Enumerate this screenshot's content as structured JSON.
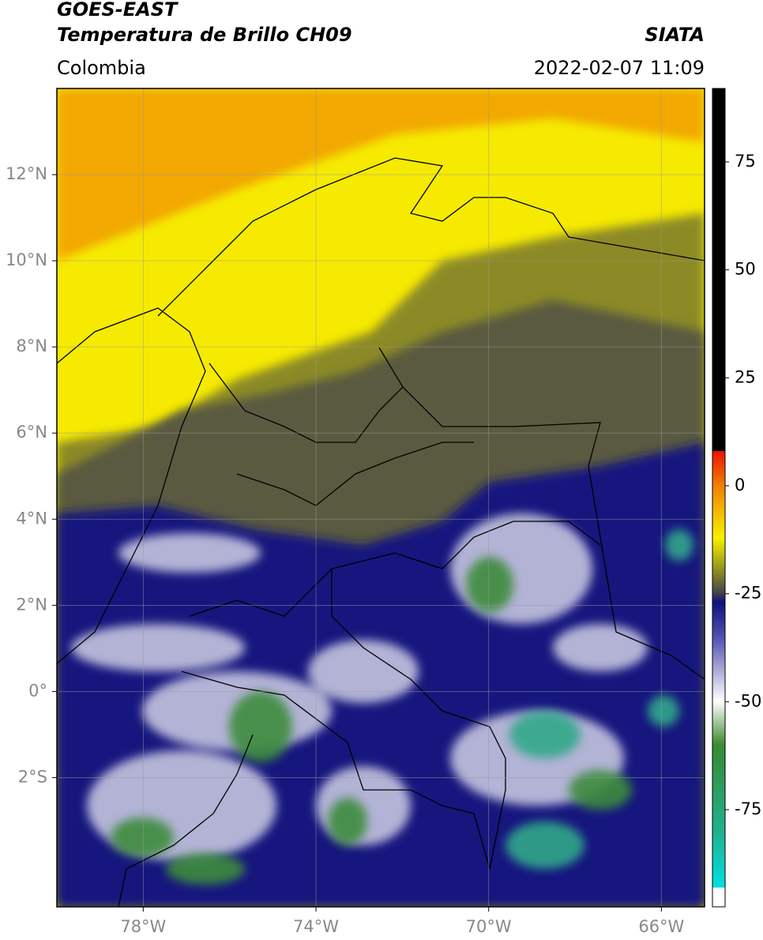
{
  "header": {
    "title": "GOES-EAST",
    "subtitle": "Temperatura de Brillo CH09",
    "source": "SIATA",
    "region": "Colombia",
    "datetime": "2022-02-07 11:09"
  },
  "map": {
    "xlim": [
      -80,
      -65
    ],
    "ylim": [
      -5,
      14
    ],
    "xticks": [
      {
        "value": -78,
        "label": "78°W"
      },
      {
        "value": -74,
        "label": "74°W"
      },
      {
        "value": -70,
        "label": "70°W"
      },
      {
        "value": -66,
        "label": "66°W"
      }
    ],
    "yticks": [
      {
        "value": 12,
        "label": "12°N"
      },
      {
        "value": 10,
        "label": "10°N"
      },
      {
        "value": 8,
        "label": "8°N"
      },
      {
        "value": 6,
        "label": "6°N"
      },
      {
        "value": 4,
        "label": "4°N"
      },
      {
        "value": 2,
        "label": "2°N"
      },
      {
        "value": 0,
        "label": "0°"
      },
      {
        "value": -2,
        "label": "2°S"
      }
    ],
    "grid": true
  },
  "colorbar": {
    "lim": [
      -97.5,
      92
    ],
    "ticks": [
      75,
      50,
      25,
      0,
      -25,
      -50,
      -75
    ]
  }
}
